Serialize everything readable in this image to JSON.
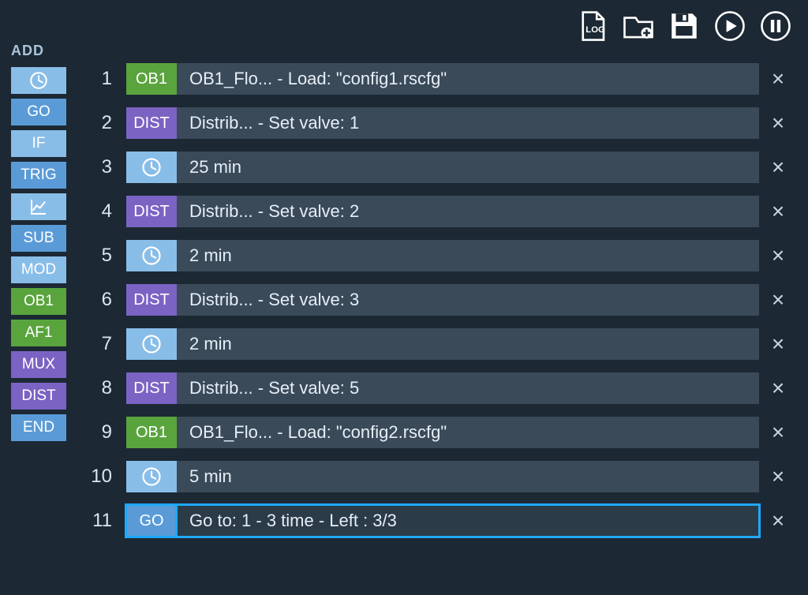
{
  "colors": {
    "bg": "#1c2833",
    "row": "#3a4a59",
    "row_selected_outline": "#1fa8ff",
    "blue": "#5a9bd7",
    "lightblue": "#88bde8",
    "green": "#5aa43e",
    "purple": "#7b63c4",
    "white": "#ffffff"
  },
  "toolbar": {
    "log": "LOG",
    "new": "new-folder",
    "save": "save",
    "play": "play",
    "pause": "pause"
  },
  "palette": {
    "heading": "ADD",
    "items": [
      {
        "kind": "clock",
        "label": "",
        "bg": "#88bde8"
      },
      {
        "kind": "text",
        "label": "GO",
        "bg": "#5a9bd7"
      },
      {
        "kind": "text",
        "label": "IF",
        "bg": "#88bde8"
      },
      {
        "kind": "text",
        "label": "TRIG",
        "bg": "#5a9bd7"
      },
      {
        "kind": "chart",
        "label": "",
        "bg": "#88bde8"
      },
      {
        "kind": "text",
        "label": "SUB",
        "bg": "#5a9bd7"
      },
      {
        "kind": "text",
        "label": "MOD",
        "bg": "#88bde8"
      },
      {
        "kind": "text",
        "label": "OB1",
        "bg": "#5aa43e"
      },
      {
        "kind": "text",
        "label": "AF1",
        "bg": "#5aa43e"
      },
      {
        "kind": "text",
        "label": "MUX",
        "bg": "#7b63c4"
      },
      {
        "kind": "text",
        "label": "DIST",
        "bg": "#7b63c4"
      },
      {
        "kind": "text",
        "label": "END",
        "bg": "#5a9bd7"
      }
    ]
  },
  "steps": [
    {
      "n": 1,
      "chip": "OB1",
      "chip_bg": "#5aa43e",
      "icon": "text",
      "text": "OB1_Flo... - Load: \"config1.rscfg\"",
      "selected": false
    },
    {
      "n": 2,
      "chip": "DIST",
      "chip_bg": "#7b63c4",
      "icon": "text",
      "text": "Distrib... - Set valve: 1",
      "selected": false
    },
    {
      "n": 3,
      "chip": "",
      "chip_bg": "#88bde8",
      "icon": "clock",
      "text": "25 min",
      "selected": false
    },
    {
      "n": 4,
      "chip": "DIST",
      "chip_bg": "#7b63c4",
      "icon": "text",
      "text": "Distrib... - Set valve: 2",
      "selected": false
    },
    {
      "n": 5,
      "chip": "",
      "chip_bg": "#88bde8",
      "icon": "clock",
      "text": "2 min",
      "selected": false
    },
    {
      "n": 6,
      "chip": "DIST",
      "chip_bg": "#7b63c4",
      "icon": "text",
      "text": "Distrib... - Set valve: 3",
      "selected": false
    },
    {
      "n": 7,
      "chip": "",
      "chip_bg": "#88bde8",
      "icon": "clock",
      "text": "2 min",
      "selected": false
    },
    {
      "n": 8,
      "chip": "DIST",
      "chip_bg": "#7b63c4",
      "icon": "text",
      "text": "Distrib... - Set valve: 5",
      "selected": false
    },
    {
      "n": 9,
      "chip": "OB1",
      "chip_bg": "#5aa43e",
      "icon": "text",
      "text": "OB1_Flo... - Load: \"config2.rscfg\"",
      "selected": false
    },
    {
      "n": 10,
      "chip": "",
      "chip_bg": "#88bde8",
      "icon": "clock",
      "text": "5 min",
      "selected": false
    },
    {
      "n": 11,
      "chip": "GO",
      "chip_bg": "#5a9bd7",
      "icon": "text",
      "text": "Go to: 1 - 3 time - Left : 3/3",
      "selected": true
    }
  ]
}
